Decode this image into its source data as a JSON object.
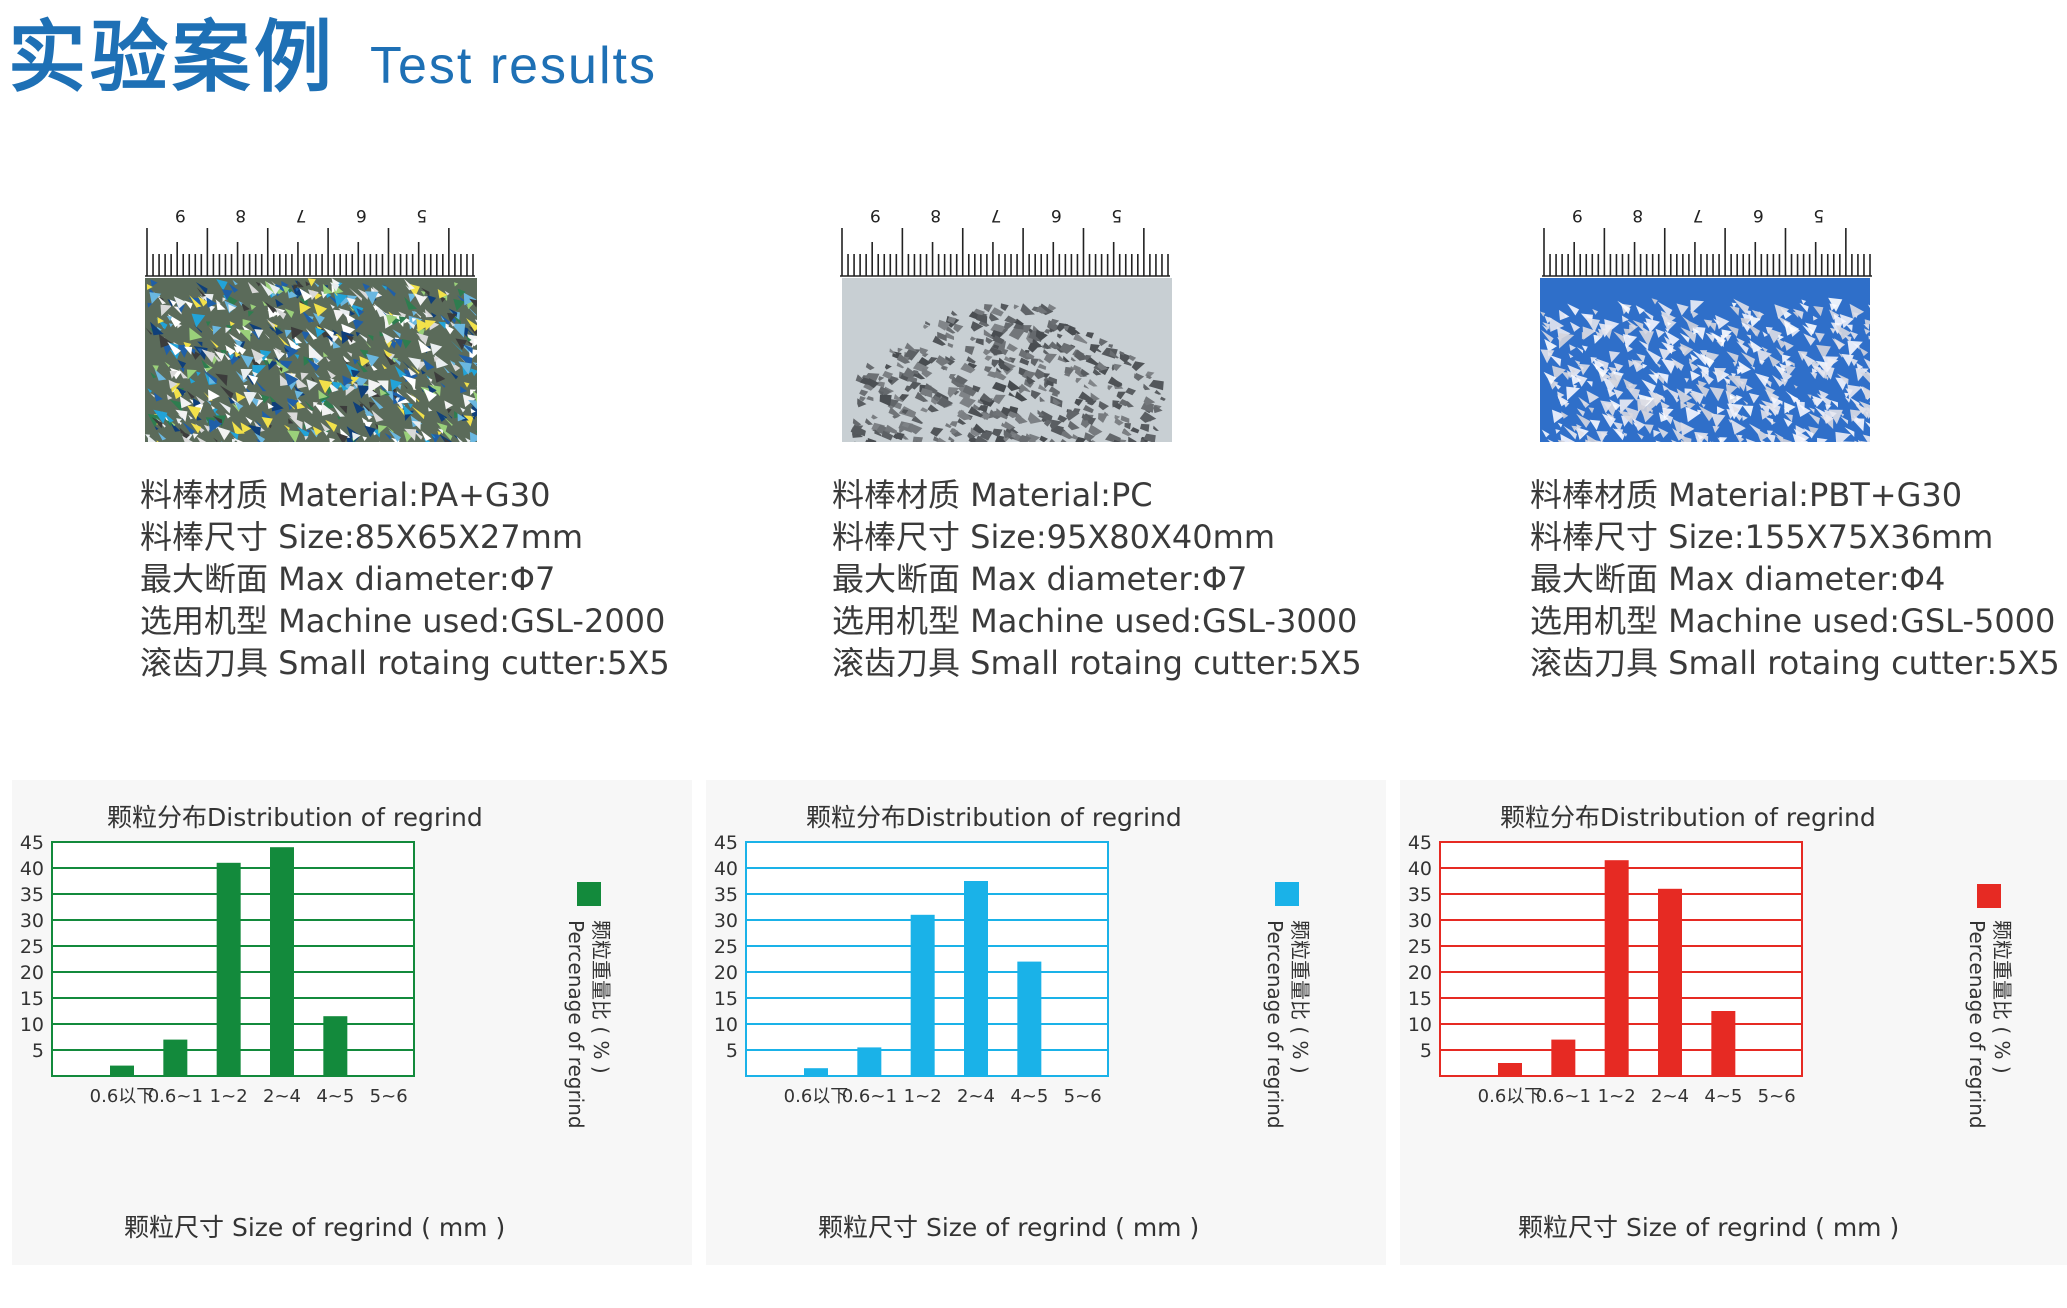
{
  "header": {
    "title_cn": "实验案例",
    "title_en": "Test results"
  },
  "ruler_labels": [
    "9",
    "8",
    "7",
    "6",
    "5"
  ],
  "samples": [
    {
      "photo_theme": "mixed-color-plastic-regrind",
      "specs": [
        "料棒材质 Material:PA+G30",
        "料棒尺寸 Size:85X65X27mm",
        "最大断面 Max diameter:Φ7",
        "选用机型 Machine used:GSL-2000",
        "滚齿刀具 Small rotaing cutter:5X5"
      ]
    },
    {
      "photo_theme": "gray-plastic-regrind",
      "specs": [
        "料棒材质 Material:PC",
        "料棒尺寸 Size:95X80X40mm",
        "最大断面 Max diameter:Φ7",
        "选用机型 Machine used:GSL-3000",
        "滚齿刀具 Small rotaing cutter:5X5"
      ]
    },
    {
      "photo_theme": "white-plastic-regrind-on-blue",
      "specs": [
        "料棒材质 Material:PBT+G30",
        "料棒尺寸 Size:155X75X36mm",
        "最大断面 Max diameter:Φ4",
        "选用机型 Machine used:GSL-5000",
        "滚齿刀具 Small rotaing cutter:5X5"
      ]
    }
  ],
  "chart_data": [
    {
      "type": "bar",
      "title": "颗粒分布Distribution of regrind",
      "xlabel": "颗粒尺寸 Size of regrind ( mm )",
      "ylabel_cn": "颗粒重量比 ( % )",
      "ylabel_en": "Percenage of regrind",
      "categories": [
        "0.6以下",
        "0.6~1",
        "1~2",
        "2~4",
        "4~5",
        "5~6"
      ],
      "values": [
        2,
        7,
        41,
        44,
        11.5,
        0
      ],
      "yticks": [
        5,
        10,
        15,
        20,
        25,
        30,
        35,
        40,
        45
      ],
      "ylim": [
        0,
        45
      ],
      "grid": true,
      "legend": "right",
      "color": "#138a3c"
    },
    {
      "type": "bar",
      "title": "颗粒分布Distribution of regrind",
      "xlabel": "颗粒尺寸 Size of regrind ( mm )",
      "ylabel_cn": "颗粒重量比 ( % )",
      "ylabel_en": "Percenage of regrind",
      "categories": [
        "0.6以下",
        "0.6~1",
        "1~2",
        "2~4",
        "4~5",
        "5~6"
      ],
      "values": [
        1.5,
        5.5,
        31,
        37.5,
        22,
        0
      ],
      "yticks": [
        5,
        10,
        15,
        20,
        25,
        30,
        35,
        40,
        45
      ],
      "ylim": [
        0,
        45
      ],
      "grid": true,
      "legend": "right",
      "color": "#1ab2e8"
    },
    {
      "type": "bar",
      "title": "颗粒分布Distribution of regrind",
      "xlabel": "颗粒尺寸 Size of regrind ( mm )",
      "ylabel_cn": "颗粒重量比 ( % )",
      "ylabel_en": "Percenage of regrind",
      "categories": [
        "0.6以下",
        "0.6~1",
        "1~2",
        "2~4",
        "4~5",
        "5~6"
      ],
      "values": [
        2.5,
        7,
        41.5,
        36,
        12.5,
        0
      ],
      "yticks": [
        5,
        10,
        15,
        20,
        25,
        30,
        35,
        40,
        45
      ],
      "ylim": [
        0,
        45
      ],
      "grid": true,
      "legend": "right",
      "color": "#e62a23"
    }
  ]
}
